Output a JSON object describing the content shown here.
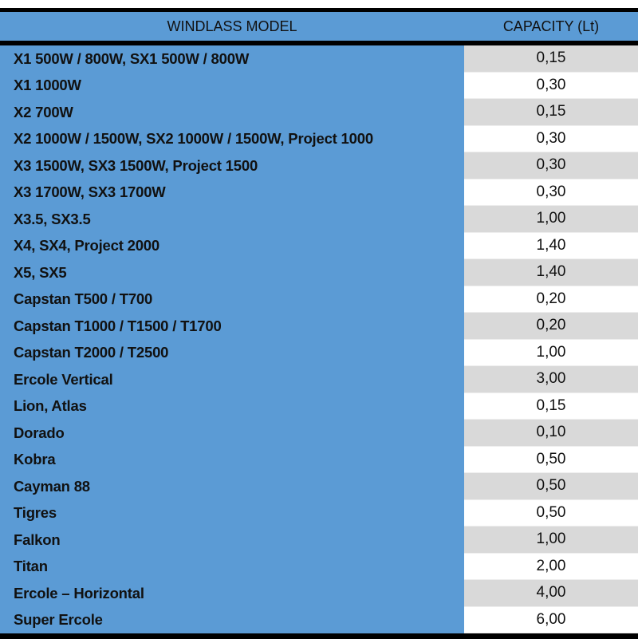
{
  "header": {
    "model": "WINDLASS MODEL",
    "capacity": "CAPACITY (Lt)"
  },
  "colors": {
    "model_column": "#5b9bd5",
    "stripe": "#d9d9d9",
    "border": "#000000"
  },
  "rows": [
    {
      "model": "X1 500W / 800W, SX1 500W / 800W",
      "capacity": "0,15"
    },
    {
      "model": "X1 1000W",
      "capacity": "0,30"
    },
    {
      "model": "X2 700W",
      "capacity": "0,15"
    },
    {
      "model": "X2 1000W / 1500W, SX2 1000W / 1500W, Project 1000",
      "capacity": "0,30"
    },
    {
      "model": "X3 1500W, SX3 1500W, Project 1500",
      "capacity": "0,30"
    },
    {
      "model": "X3 1700W, SX3 1700W",
      "capacity": "0,30"
    },
    {
      "model": "X3.5, SX3.5",
      "capacity": "1,00"
    },
    {
      "model": "X4, SX4, Project 2000",
      "capacity": "1,40"
    },
    {
      "model": "X5, SX5",
      "capacity": "1,40"
    },
    {
      "model": "Capstan T500 / T700",
      "capacity": "0,20"
    },
    {
      "model": "Capstan T1000 / T1500 / T1700",
      "capacity": "0,20"
    },
    {
      "model": "Capstan T2000 / T2500",
      "capacity": "1,00"
    },
    {
      "model": "Ercole Vertical",
      "capacity": "3,00"
    },
    {
      "model": "Lion, Atlas",
      "capacity": "0,15"
    },
    {
      "model": "Dorado",
      "capacity": "0,10"
    },
    {
      "model": "Kobra",
      "capacity": "0,50"
    },
    {
      "model": "Cayman 88",
      "capacity": "0,50"
    },
    {
      "model": "Tigres",
      "capacity": "0,50"
    },
    {
      "model": "Falkon",
      "capacity": "1,00"
    },
    {
      "model": "Titan",
      "capacity": "2,00"
    },
    {
      "model": "Ercole – Horizontal",
      "capacity": "4,00"
    },
    {
      "model": "Super Ercole",
      "capacity": "6,00"
    }
  ]
}
